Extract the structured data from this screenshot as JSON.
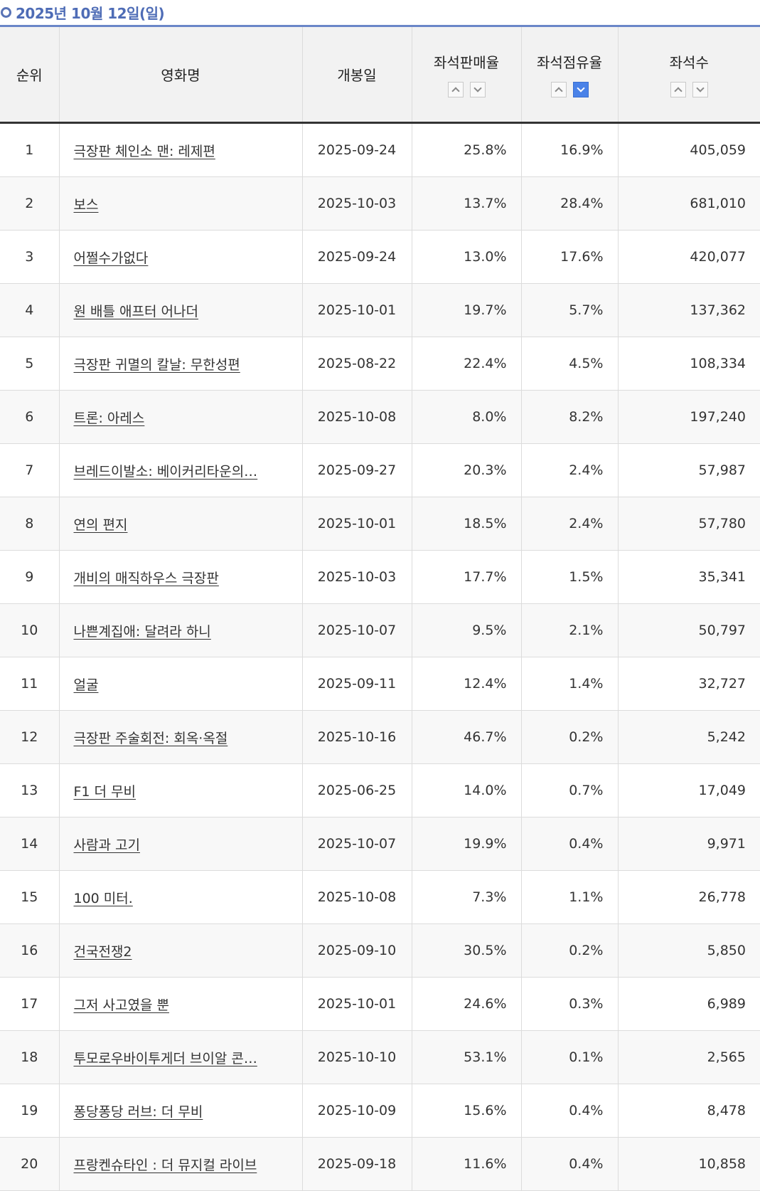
{
  "header": {
    "date": "2025년 10월 12일(일)"
  },
  "columns": {
    "rank": "순위",
    "title": "영화명",
    "release": "개봉일",
    "sales_rate": "좌석판매율",
    "share_rate": "좌석점유율",
    "seats": "좌석수"
  },
  "sort": {
    "active_column": "share_rate",
    "active_direction": "desc",
    "up_icon": "chevron-up-icon",
    "down_icon": "chevron-down-icon",
    "active_color": "#4a82e8"
  },
  "rows": [
    {
      "rank": "1",
      "title": "극장판 체인소 맨: 레제편",
      "release": "2025-09-24",
      "sales": "25.8%",
      "share": "16.9%",
      "seats": "405,059"
    },
    {
      "rank": "2",
      "title": "보스",
      "release": "2025-10-03",
      "sales": "13.7%",
      "share": "28.4%",
      "seats": "681,010"
    },
    {
      "rank": "3",
      "title": "어쩔수가없다",
      "release": "2025-09-24",
      "sales": "13.0%",
      "share": "17.6%",
      "seats": "420,077"
    },
    {
      "rank": "4",
      "title": "원 배틀 애프터 어나더",
      "release": "2025-10-01",
      "sales": "19.7%",
      "share": "5.7%",
      "seats": "137,362"
    },
    {
      "rank": "5",
      "title": "극장판 귀멸의 칼날: 무한성편",
      "release": "2025-08-22",
      "sales": "22.4%",
      "share": "4.5%",
      "seats": "108,334"
    },
    {
      "rank": "6",
      "title": "트론: 아레스",
      "release": "2025-10-08",
      "sales": "8.0%",
      "share": "8.2%",
      "seats": "197,240"
    },
    {
      "rank": "7",
      "title": "브레드이발소: 베이커리타운의…",
      "release": "2025-09-27",
      "sales": "20.3%",
      "share": "2.4%",
      "seats": "57,987"
    },
    {
      "rank": "8",
      "title": "연의 편지",
      "release": "2025-10-01",
      "sales": "18.5%",
      "share": "2.4%",
      "seats": "57,780"
    },
    {
      "rank": "9",
      "title": "개비의 매직하우스 극장판",
      "release": "2025-10-03",
      "sales": "17.7%",
      "share": "1.5%",
      "seats": "35,341"
    },
    {
      "rank": "10",
      "title": "나쁜계집애: 달려라 하니",
      "release": "2025-10-07",
      "sales": "9.5%",
      "share": "2.1%",
      "seats": "50,797"
    },
    {
      "rank": "11",
      "title": "얼굴",
      "release": "2025-09-11",
      "sales": "12.4%",
      "share": "1.4%",
      "seats": "32,727"
    },
    {
      "rank": "12",
      "title": "극장판 주술회전: 회옥·옥절",
      "release": "2025-10-16",
      "sales": "46.7%",
      "share": "0.2%",
      "seats": "5,242"
    },
    {
      "rank": "13",
      "title": "F1 더 무비",
      "release": "2025-06-25",
      "sales": "14.0%",
      "share": "0.7%",
      "seats": "17,049"
    },
    {
      "rank": "14",
      "title": "사람과 고기",
      "release": "2025-10-07",
      "sales": "19.9%",
      "share": "0.4%",
      "seats": "9,971"
    },
    {
      "rank": "15",
      "title": "100 미터.",
      "release": "2025-10-08",
      "sales": "7.3%",
      "share": "1.1%",
      "seats": "26,778"
    },
    {
      "rank": "16",
      "title": "건국전쟁2",
      "release": "2025-09-10",
      "sales": "30.5%",
      "share": "0.2%",
      "seats": "5,850"
    },
    {
      "rank": "17",
      "title": "그저 사고였을 뿐",
      "release": "2025-10-01",
      "sales": "24.6%",
      "share": "0.3%",
      "seats": "6,989"
    },
    {
      "rank": "18",
      "title": "투모로우바이투게더 브이알 콘…",
      "release": "2025-10-10",
      "sales": "53.1%",
      "share": "0.1%",
      "seats": "2,565"
    },
    {
      "rank": "19",
      "title": "퐁당퐁당 러브: 더 무비",
      "release": "2025-10-09",
      "sales": "15.6%",
      "share": "0.4%",
      "seats": "8,478"
    },
    {
      "rank": "20",
      "title": "프랑켄슈타인 : 더 뮤지컬 라이브",
      "release": "2025-09-18",
      "sales": "11.6%",
      "share": "0.4%",
      "seats": "10,858"
    }
  ]
}
